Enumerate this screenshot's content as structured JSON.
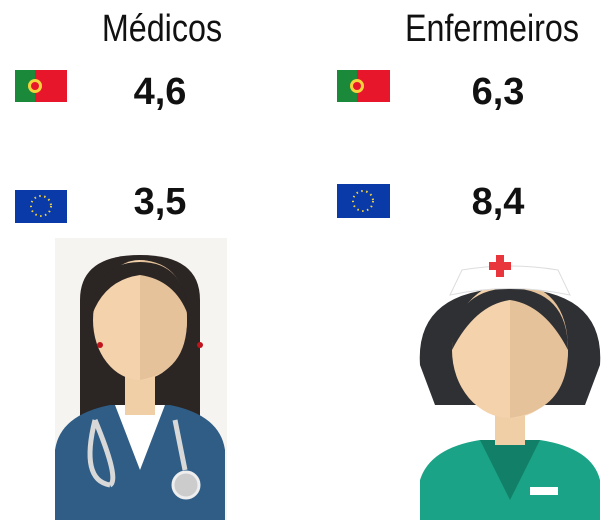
{
  "columns": [
    {
      "title": "Médicos",
      "portugal": "4,6",
      "eu": "3,5"
    },
    {
      "title": "Enfermeiros",
      "portugal": "6,3",
      "eu": "8,4"
    }
  ]
}
